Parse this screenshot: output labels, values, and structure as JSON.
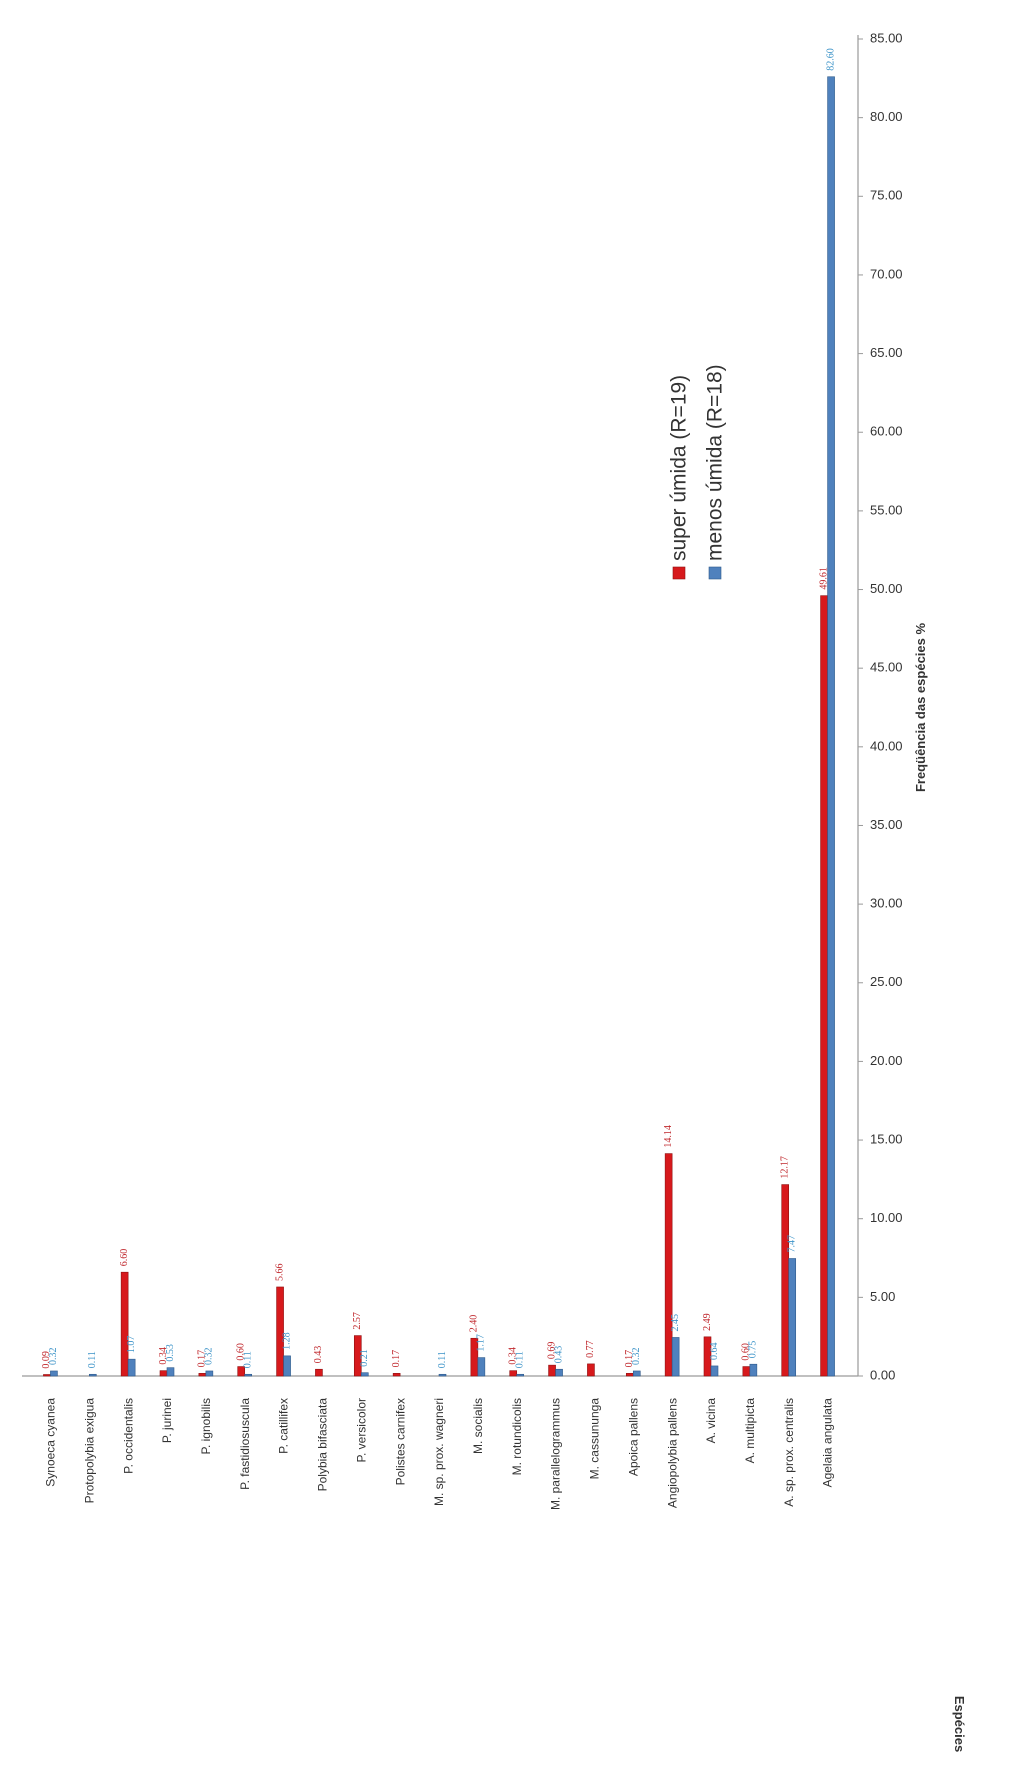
{
  "chart_data": {
    "type": "bar",
    "orientation": "horizontal",
    "title": "",
    "xlabel": "Freqüência das espécies %",
    "ylabel": "Espécies",
    "xlim": [
      0,
      85
    ],
    "x_ticks": [
      "0.00",
      "5.00",
      "10.00",
      "15.00",
      "20.00",
      "25.00",
      "30.00",
      "35.00",
      "40.00",
      "45.00",
      "50.00",
      "55.00",
      "60.00",
      "65.00",
      "70.00",
      "75.00",
      "80.00",
      "85.00"
    ],
    "grid": false,
    "legend_position": "upper-middle",
    "categories": [
      "Synoeca cyanea",
      "Protopolybia exigua",
      "P. occidentalis",
      "P. jurinei",
      "P. ignobilis",
      "P. fastidiosuscula",
      "P. catillifex",
      "Polybia bifasciata",
      "P. versicolor",
      "Polistes carnifex",
      "M. sp. prox. wagneri",
      "M. socialis",
      "M. rotundicolis",
      "M. parallelogrammus",
      "M. cassununga",
      "Apoica pallens",
      "Angiopolybia pallens",
      "A. vicina",
      "A. multipicta",
      "A. sp. prox. centralis",
      "Agelaia angulata"
    ],
    "series": [
      {
        "name": "super úmida (R=19)",
        "color": "#d7191c",
        "values": [
          0.09,
          null,
          6.6,
          0.34,
          0.17,
          0.6,
          5.66,
          0.43,
          2.57,
          0.17,
          null,
          2.4,
          0.34,
          0.69,
          0.77,
          0.17,
          14.14,
          2.49,
          0.6,
          12.17,
          49.61
        ],
        "labels": [
          "0.09",
          "",
          "6.60",
          "0.34",
          "0.17",
          "0.60",
          "5.66",
          "0.43",
          "2.57",
          "0.17",
          "",
          "2.40",
          "0.34",
          "0.69",
          "0.77",
          "0.17",
          "14.14",
          "2.49",
          "0.60",
          "12.17",
          "49.61"
        ]
      },
      {
        "name": "menos úmida (R=18)",
        "color": "#4f81bd",
        "values": [
          0.32,
          0.11,
          1.07,
          0.53,
          0.32,
          0.11,
          1.28,
          null,
          0.21,
          null,
          0.11,
          1.17,
          0.11,
          0.43,
          null,
          0.32,
          2.45,
          0.64,
          0.75,
          7.47,
          82.6
        ],
        "labels": [
          "0.32",
          "0.11",
          "1.07",
          "0.53",
          "0.32",
          "0.11",
          "1.28",
          "",
          "0.21",
          "",
          "0.11",
          "1.17",
          "0.11",
          "0.43",
          "",
          "0.32",
          "2.45",
          "0.64",
          "0.75",
          "7.47",
          "82.60"
        ]
      }
    ]
  },
  "colors": {
    "label_red": "#c0282d",
    "label_blue": "#3c93c8",
    "axis": "#9a9a9a",
    "text": "#333333"
  }
}
